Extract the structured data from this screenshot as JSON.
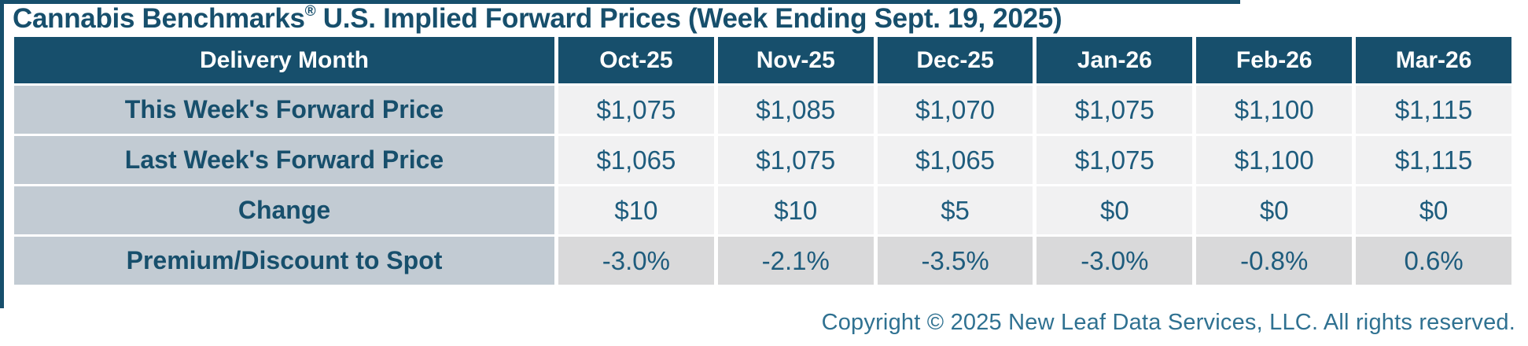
{
  "title": {
    "main": "Cannabis Benchmarks",
    "reg": "®",
    "rest": " U.S. Implied Forward Prices (Week Ending Sept. 19, 2025)"
  },
  "chart_data": {
    "type": "table",
    "title": "Cannabis Benchmarks® U.S. Implied Forward Prices (Week Ending Sept. 19, 2025)",
    "columns": [
      "Delivery Month",
      "Oct-25",
      "Nov-25",
      "Dec-25",
      "Jan-26",
      "Feb-26",
      "Mar-26"
    ],
    "rows": [
      {
        "label": "This Week's Forward Price",
        "values": [
          "$1,075",
          "$1,085",
          "$1,070",
          "$1,075",
          "$1,100",
          "$1,115"
        ]
      },
      {
        "label": "Last Week's Forward Price",
        "values": [
          "$1,065",
          "$1,075",
          "$1,065",
          "$1,075",
          "$1,100",
          "$1,115"
        ]
      },
      {
        "label": "Change",
        "values": [
          "$10",
          "$10",
          "$5",
          "$0",
          "$0",
          "$0"
        ]
      },
      {
        "label": "Premium/Discount to Spot",
        "values": [
          "-3.0%",
          "-2.1%",
          "-3.5%",
          "-3.0%",
          "-0.8%",
          "0.6%"
        ]
      }
    ],
    "layout": {
      "grid": "white-gaps-between-cells",
      "last_row_shaded": true
    },
    "footer": "Copyright © 2025 New Leaf Data Services, LLC. All rights reserved."
  },
  "footer": {
    "text": "Copyright © 2025 New Leaf Data Services, LLC. All rights reserved."
  },
  "colors": {
    "header_bg": "#174F6C",
    "header_text": "#FFFFFF",
    "title_text": "#174F6C",
    "row_label_bg": "#C2CBD3",
    "cell_bg": "#F1F1F2",
    "cell_bg_shaded": "#D9D9DA",
    "cell_text": "#1E5C7D",
    "copyright_text": "#2F7191"
  }
}
